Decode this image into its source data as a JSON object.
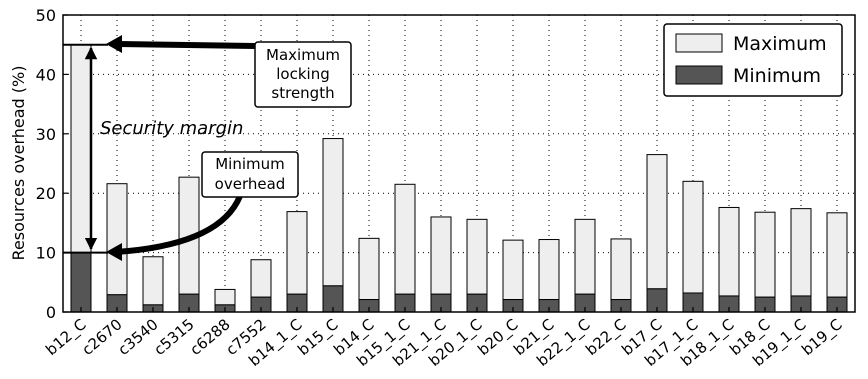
{
  "chart_data": {
    "type": "bar",
    "stacked": true,
    "ylabel": "Resources overhead (%)",
    "xlabel": "",
    "ylim": [
      0,
      50
    ],
    "yticks": [
      0,
      10,
      20,
      30,
      40,
      50
    ],
    "grid": "dotted",
    "legend_position": "top-right",
    "categories": [
      "b12_C",
      "c2670",
      "c3540",
      "c5315",
      "c6288",
      "c7552",
      "b14_1_C",
      "b15_C",
      "b14_C",
      "b15_1_C",
      "b21_1_C",
      "b20_1_C",
      "b20_C",
      "b21_C",
      "b22_1_C",
      "b22_C",
      "b17_C",
      "b17_1_C",
      "b18_1_C",
      "b18_C",
      "b19_1_C",
      "b19_C"
    ],
    "series": [
      {
        "name": "Minimum",
        "color": "#555555",
        "values": [
          10.0,
          2.9,
          1.2,
          3.0,
          1.2,
          2.5,
          3.0,
          4.4,
          2.1,
          3.0,
          3.0,
          3.0,
          2.1,
          2.1,
          3.0,
          2.1,
          3.9,
          3.2,
          2.7,
          2.5,
          2.7,
          2.5
        ]
      },
      {
        "name": "Maximum",
        "color": "#eeeeee",
        "values": [
          45.0,
          21.6,
          9.3,
          22.7,
          3.8,
          8.8,
          16.9,
          29.2,
          12.4,
          21.5,
          16.0,
          15.6,
          12.1,
          12.2,
          15.6,
          12.3,
          26.5,
          22.0,
          17.6,
          16.8,
          17.4,
          16.7
        ]
      }
    ],
    "annotations": {
      "max_label": [
        "Maximum",
        "locking",
        "strength"
      ],
      "min_label": [
        "Minimum",
        "overhead"
      ],
      "margin_label": "Security margin"
    }
  }
}
